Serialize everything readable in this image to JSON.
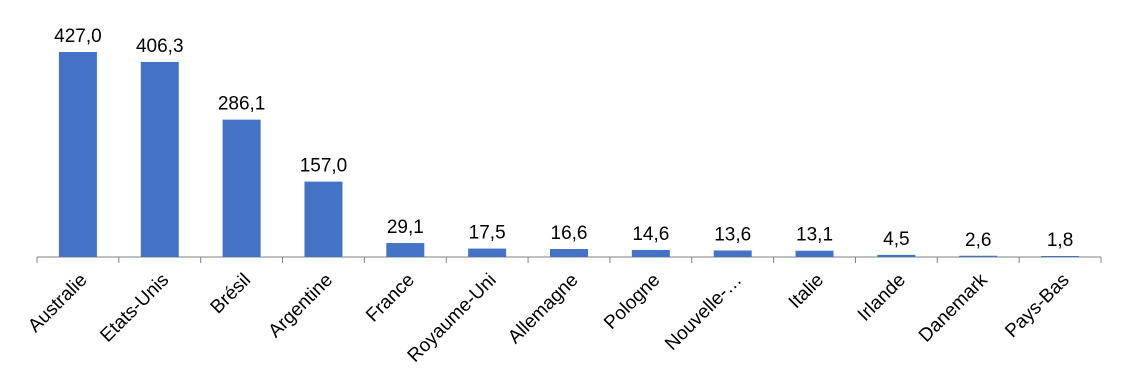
{
  "chart_data": {
    "type": "bar",
    "categories": [
      "Australie",
      "Etats-Unis",
      "Brésil",
      "Argentine",
      "France",
      "Royaume-Uni",
      "Allemagne",
      "Pologne",
      "Nouvelle-…",
      "Italie",
      "Irlande",
      "Danemark",
      "Pays-Bas"
    ],
    "values": [
      427.0,
      406.3,
      286.1,
      157.0,
      29.1,
      17.5,
      16.6,
      14.6,
      13.6,
      13.1,
      4.5,
      2.6,
      1.8
    ],
    "value_labels": [
      "427,0",
      "406,3",
      "286,1",
      "157,0",
      "29,1",
      "17,5",
      "16,6",
      "14,6",
      "13,6",
      "13,1",
      "4,5",
      "2,6",
      "1,8"
    ],
    "title": "",
    "xlabel": "",
    "ylabel": "",
    "ylim": [
      0,
      427.0
    ],
    "grid": false,
    "legend": "none",
    "bar_color": "#4472C4",
    "axis_color": "#808080"
  }
}
